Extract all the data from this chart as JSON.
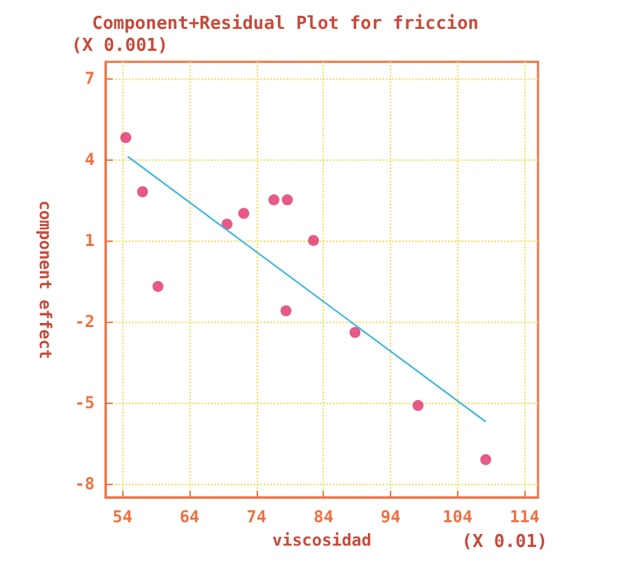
{
  "chart_data": {
    "type": "scatter",
    "title": "Component+Residual Plot for friccion",
    "xlabel": "viscosidad",
    "ylabel": "component effect",
    "annotations": [
      "(X 0.001)",
      "(X 0.01)"
    ],
    "x": [
      54.5,
      57.0,
      59.3,
      69.6,
      72.1,
      76.6,
      78.6,
      82.5,
      78.4,
      88.7,
      98.1,
      108.2
    ],
    "series": [
      {
        "type": "scatter",
        "color": "#e0306a",
        "marker": "circle",
        "values": [
          4.8,
          2.8,
          -0.7,
          1.6,
          2.0,
          2.5,
          2.5,
          1.0,
          -1.6,
          -2.4,
          -5.1,
          -7.1
        ]
      },
      {
        "type": "line",
        "color": "#40b8e0",
        "marker": "none",
        "x": [
          54.8,
          108.2
        ],
        "values": [
          4.1,
          -5.7
        ]
      }
    ],
    "xlim": [
      51.5,
      116
    ],
    "xticks": [
      54,
      64,
      74,
      84,
      94,
      104,
      114
    ],
    "ylim": [
      -8.5,
      7.6
    ],
    "yticks": [
      -8,
      -5,
      -2,
      1,
      4,
      7
    ],
    "grid": true
  }
}
